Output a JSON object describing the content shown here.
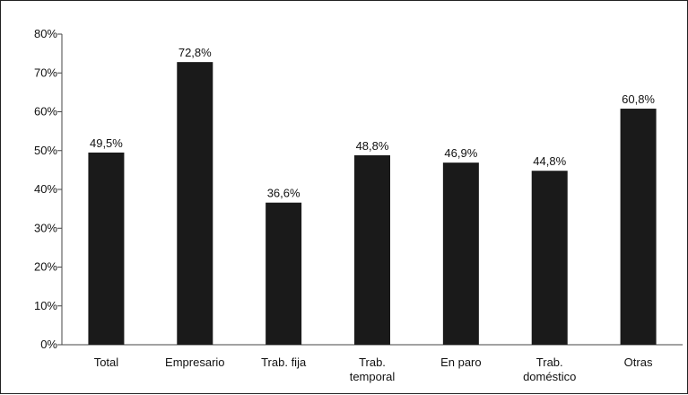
{
  "chart_data": {
    "type": "bar",
    "title": "",
    "xlabel": "",
    "ylabel": "",
    "ylim": [
      0,
      80
    ],
    "y_ticks": [
      "0%",
      "10%",
      "20%",
      "30%",
      "40%",
      "50%",
      "60%",
      "70%",
      "80%"
    ],
    "categories": [
      [
        "Total"
      ],
      [
        "Empresario"
      ],
      [
        "Trab. fija"
      ],
      [
        "Trab.",
        "temporal"
      ],
      [
        "En paro"
      ],
      [
        "Trab.",
        "doméstico"
      ],
      [
        "Otras"
      ]
    ],
    "values": [
      49.5,
      72.8,
      36.6,
      48.8,
      46.9,
      44.8,
      60.8
    ],
    "data_labels": [
      "49,5%",
      "72,8%",
      "36,6%",
      "48,8%",
      "46,9%",
      "44,8%",
      "60,8%"
    ],
    "bar_color": "#1a1a1a",
    "grid": false,
    "legend": "none"
  }
}
